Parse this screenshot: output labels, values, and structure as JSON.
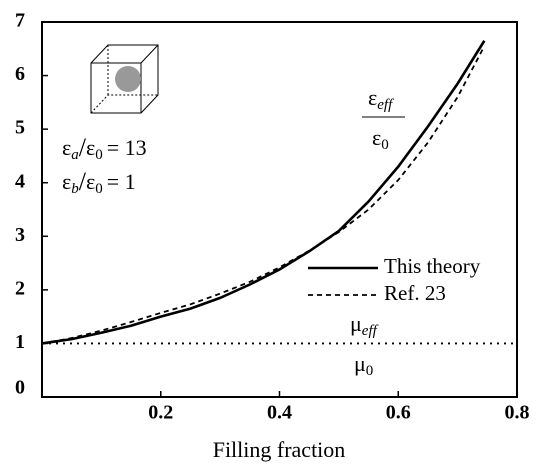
{
  "chart_data": {
    "type": "line",
    "xlabel": "Filling fraction",
    "x": [
      0,
      0.05,
      0.1,
      0.15,
      0.2,
      0.25,
      0.3,
      0.35,
      0.4,
      0.45,
      0.5,
      0.55,
      0.6,
      0.65,
      0.7,
      0.745
    ],
    "series": [
      {
        "name": "This theory",
        "color": "#000000",
        "dash": "solid",
        "values": [
          1,
          1.08,
          1.2,
          1.33,
          1.5,
          1.65,
          1.85,
          2.1,
          2.38,
          2.72,
          3.1,
          3.65,
          4.3,
          5.05,
          5.85,
          6.65
        ]
      },
      {
        "name": "Ref. 23",
        "color": "#000000",
        "dash": "dashed",
        "values": [
          1,
          1.1,
          1.24,
          1.4,
          1.57,
          1.73,
          1.93,
          2.15,
          2.42,
          2.73,
          3.08,
          3.5,
          4.05,
          4.75,
          5.6,
          6.55
        ]
      }
    ],
    "hline": 1,
    "xlim": [
      0,
      0.8
    ],
    "xticks": [
      0,
      0.2,
      0.4,
      0.6,
      0.8
    ],
    "ylim": [
      0,
      7
    ],
    "yticks": [
      0,
      1,
      2,
      3,
      4,
      5,
      6,
      7
    ],
    "legend": "right",
    "eps_ratio": {
      "num": [
        "ε",
        "eff"
      ],
      "den": [
        "ε",
        "0"
      ]
    },
    "mu_ratio": {
      "num": [
        "μ",
        "eff"
      ],
      "den": [
        "μ",
        "0"
      ]
    },
    "params": [
      [
        "ε",
        "a",
        "/",
        "ε",
        "0",
        "= 13"
      ],
      [
        "ε",
        "b",
        "/",
        "ε",
        "0",
        "= 1"
      ]
    ]
  }
}
